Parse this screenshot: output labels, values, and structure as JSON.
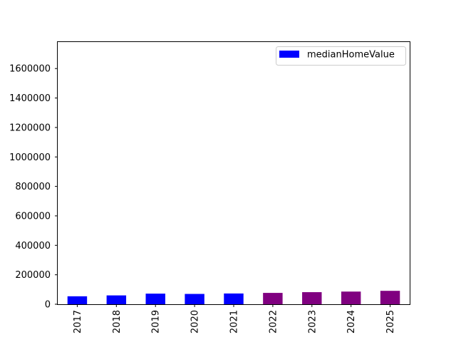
{
  "chart_data": {
    "type": "bar",
    "categories": [
      "2017",
      "2018",
      "2019",
      "2020",
      "2021",
      "2022",
      "2023",
      "2024",
      "2025"
    ],
    "series": [
      {
        "name": "medianHomeValue",
        "values": [
          54000,
          60000,
          72000,
          70000,
          73000,
          77000,
          82000,
          86000,
          91000
        ],
        "colors": [
          "#0000ff",
          "#0000ff",
          "#0000ff",
          "#0000ff",
          "#0000ff",
          "#800080",
          "#800080",
          "#800080",
          "#800080"
        ]
      }
    ],
    "ylim": [
      0,
      1780000
    ],
    "yticks": [
      0,
      200000,
      400000,
      600000,
      800000,
      1000000,
      1200000,
      1400000,
      1600000
    ],
    "grid": false,
    "legend": {
      "placement": "top-right",
      "entries": [
        {
          "label": "medianHomeValue",
          "color": "#0000ff"
        }
      ]
    },
    "xlabel": "",
    "ylabel": ""
  }
}
